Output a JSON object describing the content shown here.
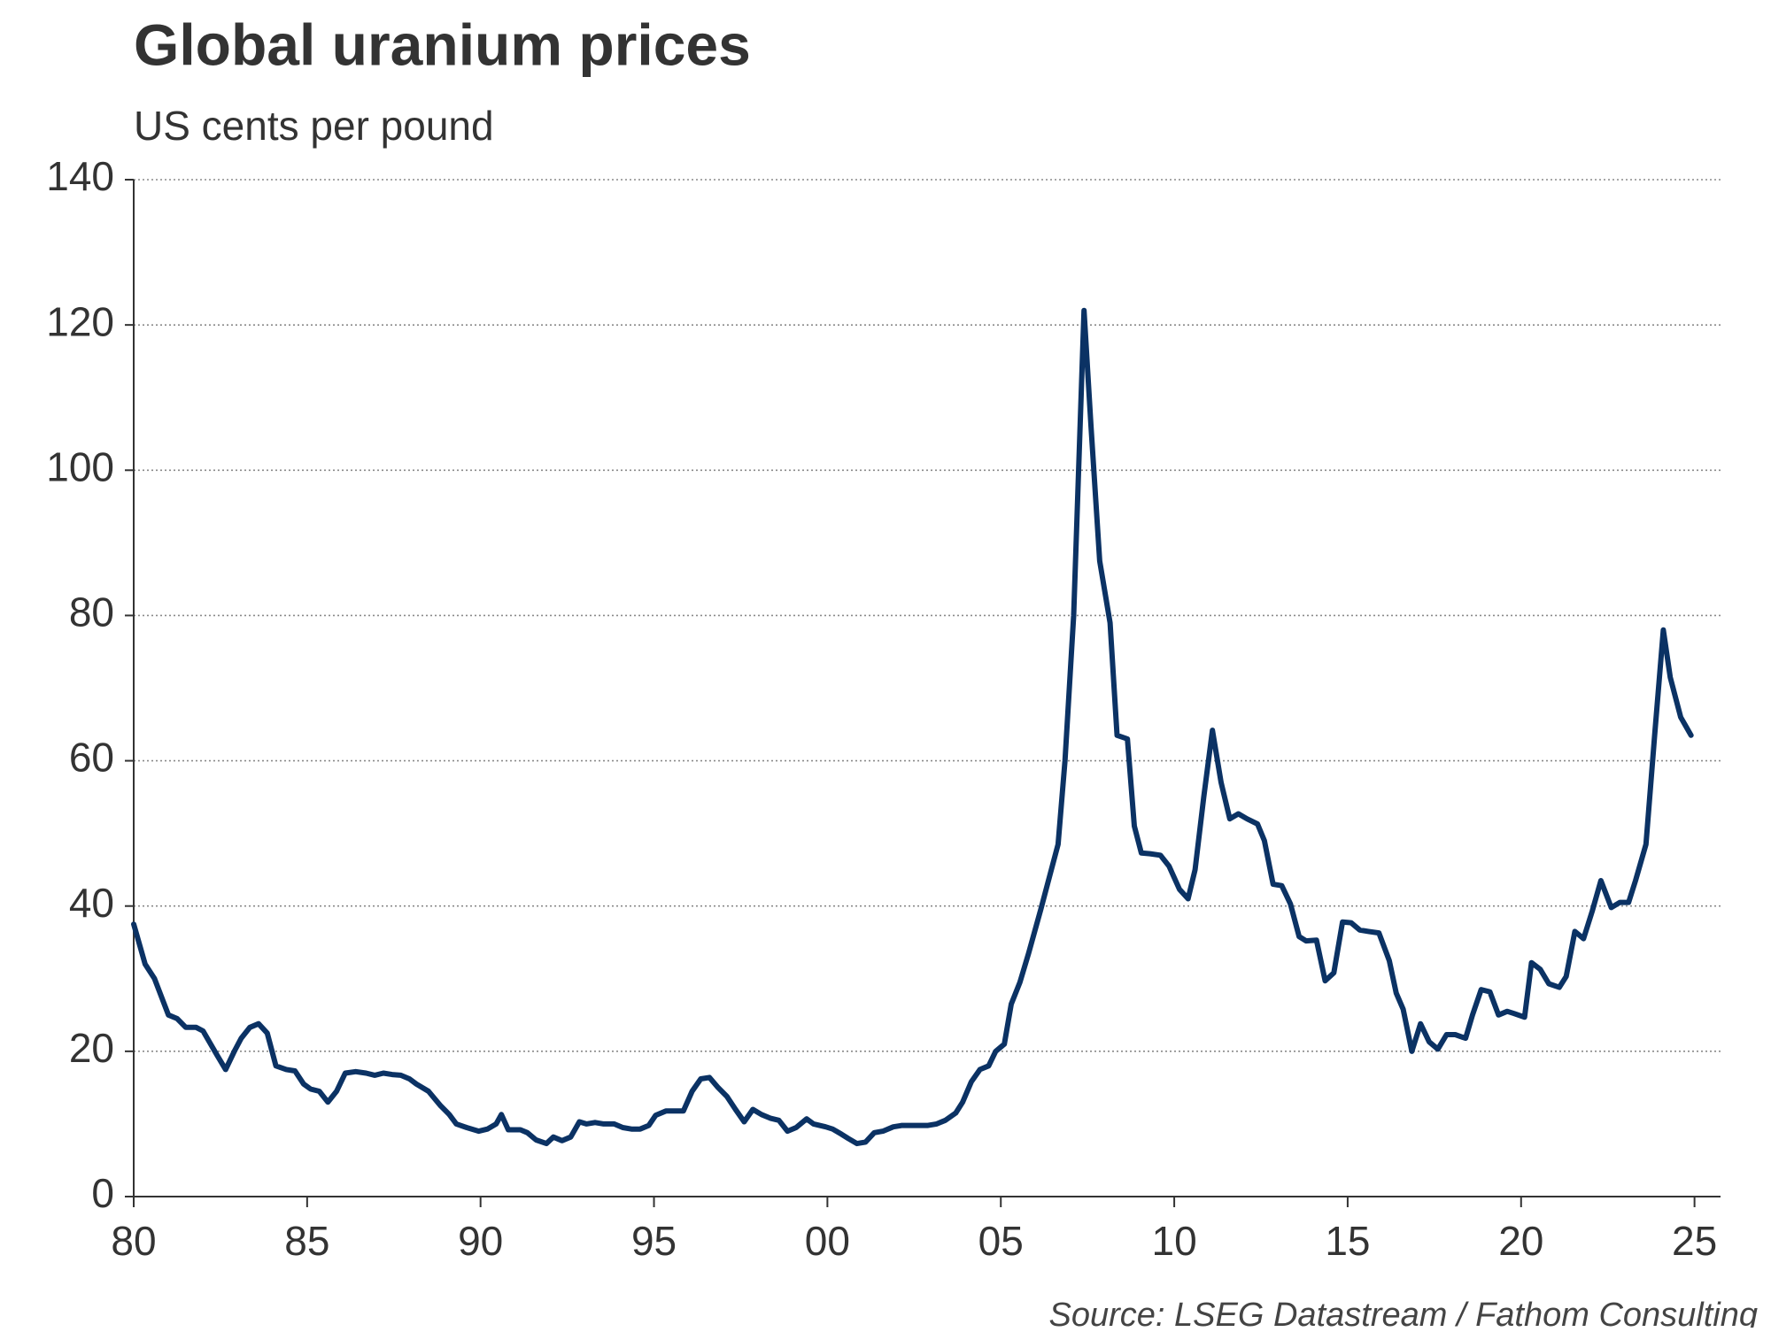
{
  "chart_data": {
    "type": "line",
    "title": "Global uranium prices",
    "subtitle": "US cents per pound",
    "source": "Source: LSEG Datastream / Fathom Consulting",
    "xlim": [
      1980,
      2025.75
    ],
    "xticks": [
      {
        "value": 1980,
        "label": "80"
      },
      {
        "value": 1985,
        "label": "85"
      },
      {
        "value": 1990,
        "label": "90"
      },
      {
        "value": 1995,
        "label": "95"
      },
      {
        "value": 2000,
        "label": "00"
      },
      {
        "value": 2005,
        "label": "05"
      },
      {
        "value": 2010,
        "label": "10"
      },
      {
        "value": 2015,
        "label": "15"
      },
      {
        "value": 2020,
        "label": "20"
      },
      {
        "value": 2025,
        "label": "25"
      }
    ],
    "ylim": [
      0,
      140
    ],
    "yticks": [
      0,
      20,
      40,
      60,
      80,
      100,
      120,
      140
    ],
    "grid": true,
    "x": [
      1980.0,
      1980.33,
      1980.6,
      1981.0,
      1981.25,
      1981.5,
      1981.8,
      1982.0,
      1982.4,
      1982.65,
      1982.9,
      1983.1,
      1983.35,
      1983.6,
      1983.85,
      1984.1,
      1984.4,
      1984.65,
      1984.9,
      1985.1,
      1985.35,
      1985.6,
      1985.85,
      1986.1,
      1986.4,
      1986.7,
      1986.95,
      1987.2,
      1987.45,
      1987.7,
      1987.95,
      1988.15,
      1988.5,
      1988.85,
      1989.1,
      1989.3,
      1989.6,
      1989.95,
      1990.2,
      1990.45,
      1990.6,
      1990.8,
      1991.15,
      1991.35,
      1991.6,
      1991.9,
      1992.1,
      1992.35,
      1992.6,
      1992.85,
      1993.05,
      1993.3,
      1993.55,
      1993.85,
      1994.1,
      1994.35,
      1994.6,
      1994.85,
      1995.05,
      1995.35,
      1995.6,
      1995.85,
      1996.1,
      1996.35,
      1996.6,
      1996.85,
      1997.1,
      1997.35,
      1997.6,
      1997.85,
      1998.1,
      1998.35,
      1998.6,
      1998.85,
      1999.1,
      1999.4,
      1999.6,
      1999.95,
      2000.15,
      2000.4,
      2000.6,
      2000.85,
      2001.1,
      2001.35,
      2001.6,
      2001.9,
      2002.15,
      2002.4,
      2002.65,
      2002.9,
      2003.15,
      2003.4,
      2003.7,
      2003.9,
      2004.15,
      2004.4,
      2004.65,
      2004.85,
      2005.1,
      2005.3,
      2005.55,
      2005.8,
      2006.15,
      2006.4,
      2006.65,
      2006.85,
      2007.1,
      2007.4,
      2007.6,
      2007.85,
      2008.15,
      2008.35,
      2008.65,
      2008.85,
      2009.05,
      2009.3,
      2009.6,
      2009.85,
      2010.15,
      2010.4,
      2010.6,
      2010.85,
      2011.1,
      2011.35,
      2011.6,
      2011.85,
      2012.1,
      2012.4,
      2012.6,
      2012.85,
      2013.1,
      2013.35,
      2013.6,
      2013.8,
      2014.1,
      2014.35,
      2014.6,
      2014.85,
      2015.1,
      2015.35,
      2015.6,
      2015.9,
      2016.2,
      2016.4,
      2016.6,
      2016.85,
      2017.1,
      2017.35,
      2017.6,
      2017.85,
      2018.1,
      2018.4,
      2018.6,
      2018.85,
      2019.1,
      2019.35,
      2019.6,
      2019.8,
      2020.1,
      2020.3,
      2020.55,
      2020.8,
      2021.1,
      2021.3,
      2021.55,
      2021.8,
      2022.05,
      2022.3,
      2022.6,
      2022.85,
      2023.1,
      2023.3,
      2023.6,
      2023.85,
      2024.1,
      2024.3,
      2024.6,
      2024.9
    ],
    "series": [
      {
        "color": "#0b3264",
        "values": [
          37.5,
          32,
          30,
          25,
          24.5,
          23.3,
          23.3,
          22.8,
          19.5,
          17.5,
          20,
          21.8,
          23.3,
          23.8,
          22.5,
          18,
          17.5,
          17.3,
          15.5,
          14.8,
          14.5,
          13,
          14.5,
          17,
          17.2,
          17,
          16.7,
          17,
          16.8,
          16.7,
          16.2,
          15.5,
          14.5,
          12.5,
          11.3,
          10,
          9.5,
          9,
          9.3,
          10,
          11.3,
          9.2,
          9.2,
          8.8,
          7.8,
          7.3,
          8.2,
          7.7,
          8.2,
          10.3,
          10,
          10.2,
          10,
          10,
          9.5,
          9.3,
          9.3,
          9.8,
          11.2,
          11.8,
          11.8,
          11.8,
          14.5,
          16.2,
          16.4,
          15,
          13.8,
          12,
          10.3,
          12,
          11.3,
          10.8,
          10.5,
          9,
          9.5,
          10.7,
          10,
          9.6,
          9.3,
          8.6,
          8,
          7.3,
          7.5,
          8.8,
          9,
          9.6,
          9.8,
          9.8,
          9.8,
          9.8,
          10,
          10.5,
          11.5,
          13,
          15.8,
          17.5,
          18,
          20,
          21,
          26.5,
          29.5,
          33.5,
          39.5,
          44,
          48.5,
          60,
          80,
          122,
          106,
          87.5,
          79,
          63.5,
          63,
          51,
          47.3,
          47.2,
          47,
          45.5,
          42.3,
          41,
          45,
          55,
          64.2,
          57,
          52,
          52.7,
          52,
          51.3,
          49,
          43,
          42.8,
          40.3,
          35.8,
          35.2,
          35.3,
          29.7,
          30.8,
          37.8,
          37.7,
          36.7,
          36.5,
          36.3,
          32.5,
          28,
          25.8,
          20,
          23.8,
          21.3,
          20.3,
          22.3,
          22.3,
          21.8,
          25,
          28.5,
          28.2,
          25,
          25.5,
          25.2,
          24.7,
          32.2,
          31.3,
          29.3,
          28.8,
          30.3,
          36.5,
          35.5,
          39.3,
          43.5,
          39.8,
          40.5,
          40.5,
          43.5,
          48.5,
          63.5,
          78,
          71.5,
          66,
          63.5
        ]
      }
    ]
  }
}
